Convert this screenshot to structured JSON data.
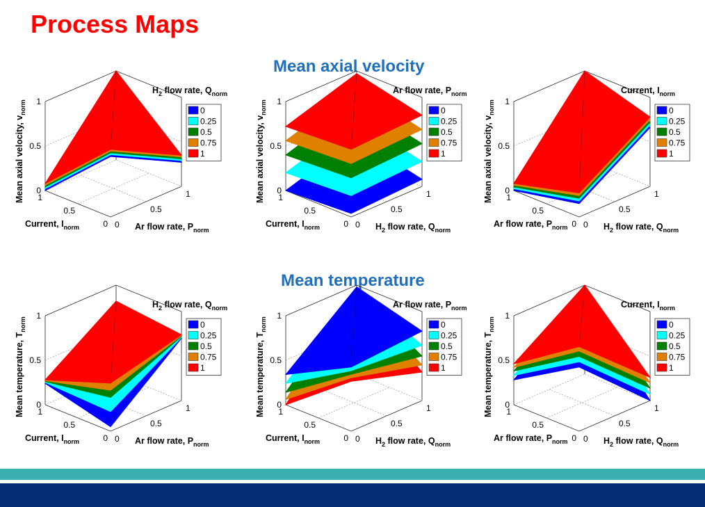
{
  "title": "Process Maps",
  "sections": {
    "velocity": "Mean axial velocity",
    "temperature": "Mean temperature"
  },
  "axis_names": {
    "I": [
      "Current, I",
      "norm"
    ],
    "P": [
      "Ar flow rate, P",
      "norm"
    ],
    "Q": [
      "H",
      "2",
      " flow rate, Q",
      "norm"
    ],
    "V": [
      "Mean axial velocity, v",
      "norm"
    ],
    "T": [
      "Mean temperature, T",
      "norm"
    ]
  },
  "colors": {
    "0": "#0000ff",
    "0.25": "#00ffff",
    "0.5": "#008000",
    "0.75": "#e08000",
    "1": "#ff0000"
  },
  "footer": {
    "teal": "#3cb0b0",
    "navy": "#042b76"
  },
  "chart_data": [
    {
      "type": "surface3d",
      "section": "Mean axial velocity",
      "title": "",
      "xlabel": "Current, I_norm",
      "ylabel": "Ar flow rate, P_norm",
      "zlabel": "Mean axial velocity, v_norm",
      "legend_title": "H2 flow rate, Q_norm",
      "ticks": {
        "x": [
          "1",
          "0.5",
          "0"
        ],
        "y": [
          "0",
          "0.5",
          "1"
        ],
        "z": [
          "0",
          "0.5",
          "1"
        ]
      },
      "xlim": [
        0,
        1
      ],
      "ylim": [
        0,
        1
      ],
      "zlim": [
        0,
        1
      ],
      "legend": [
        "0",
        "0.25",
        "0.5",
        "0.75",
        "1"
      ],
      "series": [
        {
          "name": "0",
          "corners": [
            0.68,
            0.0,
            0.97,
            0.27
          ]
        },
        {
          "name": "0.25",
          "corners": [
            0.7,
            0.02,
            0.98,
            0.29
          ]
        },
        {
          "name": "0.5",
          "corners": [
            0.72,
            0.04,
            0.99,
            0.31
          ]
        },
        {
          "name": "0.75",
          "corners": [
            0.74,
            0.06,
            1.0,
            0.33
          ]
        },
        {
          "name": "1",
          "corners": [
            0.76,
            0.08,
            1.0,
            0.35
          ]
        }
      ]
    },
    {
      "type": "surface3d",
      "section": "Mean axial velocity",
      "title": "",
      "xlabel": "Current, I_norm",
      "ylabel": "H2 flow rate, Q_norm",
      "zlabel": "Mean axial velocity, v_norm",
      "legend_title": "Ar flow rate, P_norm",
      "ticks": {
        "x": [
          "1",
          "0.5",
          "0"
        ],
        "y": [
          "0",
          "0.5",
          "1"
        ],
        "z": [
          "0",
          "0.5",
          "1"
        ]
      },
      "xlim": [
        0,
        1
      ],
      "ylim": [
        0,
        1
      ],
      "zlim": [
        0,
        1
      ],
      "legend": [
        "0",
        "0.25",
        "0.5",
        "0.75",
        "1"
      ],
      "series": [
        {
          "name": "0",
          "corners": [
            0.04,
            0.0,
            0.25,
            0.08
          ]
        },
        {
          "name": "0.25",
          "corners": [
            0.24,
            0.2,
            0.45,
            0.28
          ]
        },
        {
          "name": "0.5",
          "corners": [
            0.44,
            0.4,
            0.65,
            0.48
          ]
        },
        {
          "name": "0.75",
          "corners": [
            0.6,
            0.56,
            0.81,
            0.64
          ]
        },
        {
          "name": "1",
          "corners": [
            0.76,
            0.72,
            0.97,
            0.8
          ]
        }
      ]
    },
    {
      "type": "surface3d",
      "section": "Mean axial velocity",
      "title": "",
      "xlabel": "Ar flow rate, P_norm",
      "ylabel": "H2 flow rate, Q_norm",
      "zlabel": "Mean axial velocity, v_norm",
      "legend_title": "Current, I_norm",
      "ticks": {
        "x": [
          "1",
          "0.5",
          "0"
        ],
        "y": [
          "0",
          "0.5",
          "1"
        ],
        "z": [
          "0",
          "0.5",
          "1"
        ]
      },
      "xlim": [
        0,
        1
      ],
      "ylim": [
        0,
        1
      ],
      "zlim": [
        0,
        1
      ],
      "legend": [
        "0",
        "0.25",
        "0.5",
        "0.75",
        "1"
      ],
      "series": [
        {
          "name": "0",
          "corners": [
            0.15,
            0.0,
            0.88,
            0.66
          ]
        },
        {
          "name": "0.25",
          "corners": [
            0.18,
            0.02,
            0.91,
            0.69
          ]
        },
        {
          "name": "0.5",
          "corners": [
            0.21,
            0.04,
            0.94,
            0.72
          ]
        },
        {
          "name": "0.75",
          "corners": [
            0.24,
            0.06,
            0.97,
            0.75
          ]
        },
        {
          "name": "1",
          "corners": [
            0.27,
            0.08,
            1.0,
            0.78
          ]
        }
      ]
    },
    {
      "type": "surface3d",
      "section": "Mean temperature",
      "title": "",
      "xlabel": "Current, I_norm",
      "ylabel": "Ar flow rate, P_norm",
      "zlabel": "Mean temperature, T_norm",
      "legend_title": "H2 flow rate, Q_norm",
      "ticks": {
        "x": [
          "1",
          "0.5",
          "0"
        ],
        "y": [
          "0",
          "0.5",
          "1"
        ],
        "z": [
          "0",
          "0.5",
          "1"
        ]
      },
      "xlim": [
        0,
        1
      ],
      "ylim": [
        0,
        1
      ],
      "zlim": [
        0,
        1
      ],
      "legend": [
        "0",
        "0.25",
        "0.5",
        "0.75",
        "1"
      ],
      "series": [
        {
          "name": "0",
          "corners": [
            0.05,
            0.24,
            0.66,
            0.7
          ]
        },
        {
          "name": "0.25",
          "corners": [
            0.22,
            0.25,
            0.7,
            0.71
          ]
        },
        {
          "name": "0.5",
          "corners": [
            0.38,
            0.26,
            0.74,
            0.72
          ]
        },
        {
          "name": "0.75",
          "corners": [
            0.46,
            0.27,
            0.78,
            0.73
          ]
        },
        {
          "name": "1",
          "corners": [
            0.54,
            0.28,
            0.82,
            0.74
          ]
        }
      ]
    },
    {
      "type": "surface3d",
      "section": "Mean temperature",
      "title": "",
      "xlabel": "Current, I_norm",
      "ylabel": "H2 flow rate, Q_norm",
      "zlabel": "Mean temperature, T_norm",
      "legend_title": "Ar flow rate, P_norm",
      "ticks": {
        "x": [
          "1",
          "0.5",
          "0"
        ],
        "y": [
          "0",
          "0.5",
          "1"
        ],
        "z": [
          "0",
          "0.5",
          "1"
        ]
      },
      "xlim": [
        0,
        1
      ],
      "ylim": [
        0,
        1
      ],
      "zlim": [
        0,
        1
      ],
      "legend": [
        "0",
        "0.25",
        "0.5",
        "0.75",
        "1"
      ],
      "series": [
        {
          "name": "0",
          "corners": [
            0.72,
            0.34,
            0.98,
            0.78
          ]
        },
        {
          "name": "0.25",
          "corners": [
            0.68,
            0.24,
            0.96,
            0.62
          ]
        },
        {
          "name": "0.5",
          "corners": [
            0.64,
            0.14,
            0.94,
            0.5
          ]
        },
        {
          "name": "0.75",
          "corners": [
            0.6,
            0.06,
            0.92,
            0.4
          ]
        },
        {
          "name": "1",
          "corners": [
            0.56,
            0.0,
            0.9,
            0.32
          ]
        }
      ]
    },
    {
      "type": "surface3d",
      "section": "Mean temperature",
      "title": "",
      "xlabel": "Ar flow rate, P_norm",
      "ylabel": "H2 flow rate, Q_norm",
      "zlabel": "Mean temperature, T_norm",
      "legend_title": "Current, I_norm",
      "ticks": {
        "x": [
          "1",
          "0.5",
          "0"
        ],
        "y": [
          "0",
          "0.5",
          "1"
        ],
        "z": [
          "0",
          "0.5",
          "1"
        ]
      },
      "xlim": [
        0,
        1
      ],
      "ylim": [
        0,
        1
      ],
      "zlim": [
        0,
        1
      ],
      "legend": [
        "0",
        "0.25",
        "0.5",
        "0.75",
        "1"
      ],
      "series": [
        {
          "name": "0",
          "corners": [
            0.72,
            0.28,
            0.88,
            0.0
          ]
        },
        {
          "name": "0.25",
          "corners": [
            0.78,
            0.33,
            0.92,
            0.07
          ]
        },
        {
          "name": "0.5",
          "corners": [
            0.84,
            0.38,
            0.95,
            0.14
          ]
        },
        {
          "name": "0.75",
          "corners": [
            0.9,
            0.42,
            0.98,
            0.2
          ]
        },
        {
          "name": "1",
          "corners": [
            0.95,
            0.46,
            1.0,
            0.26
          ]
        }
      ]
    }
  ]
}
